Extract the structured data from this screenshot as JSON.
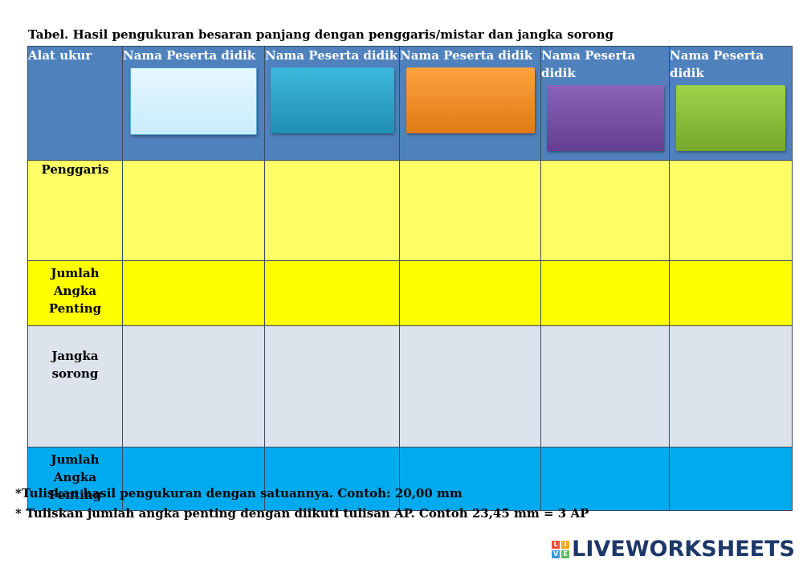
{
  "title": "Tabel. Hasil pengukuran besaran panjang dengan penggaris/mistar dan jangka sorong",
  "table": {
    "header_first": "Alat ukur",
    "participant_label": "Nama Peserta didik",
    "participants": [
      {
        "label": "Nama Peserta didik",
        "color": "#e6f7ff"
      },
      {
        "label": "Nama Peserta didik",
        "color": "#2aa6c9"
      },
      {
        "label": "Nama Peserta didik",
        "color": "#f5912a"
      },
      {
        "label": "Nama Peserta didik",
        "color": "#7a52a8"
      },
      {
        "label": "Nama Peserta didik",
        "color": "#8fc33a"
      }
    ],
    "rows": [
      {
        "label": "Penggaris",
        "color": "#ffff66"
      },
      {
        "label": "Jumlah Angka Penting",
        "color": "#ffff00"
      },
      {
        "label": "Jangka sorong",
        "color": "#dce3ed"
      },
      {
        "label": "Jumlah Angka Penting",
        "color": "#00aaee"
      }
    ]
  },
  "notes": [
    "*Tuliskan hasil pengukuran dengan satuannya. Contoh: 20,00 mm",
    "* Tuliskan jumlah angka penting dengan diikuti tulisan AP. Contoh 23,45 mm = 3 AP"
  ],
  "brand": {
    "name": "LIVEWORKSHEETS",
    "mark_letters": [
      "L",
      "I",
      "V",
      "E"
    ],
    "mark_colors": [
      "#e94e3c",
      "#f5a623",
      "#3a9ad9",
      "#5cb85c"
    ]
  }
}
